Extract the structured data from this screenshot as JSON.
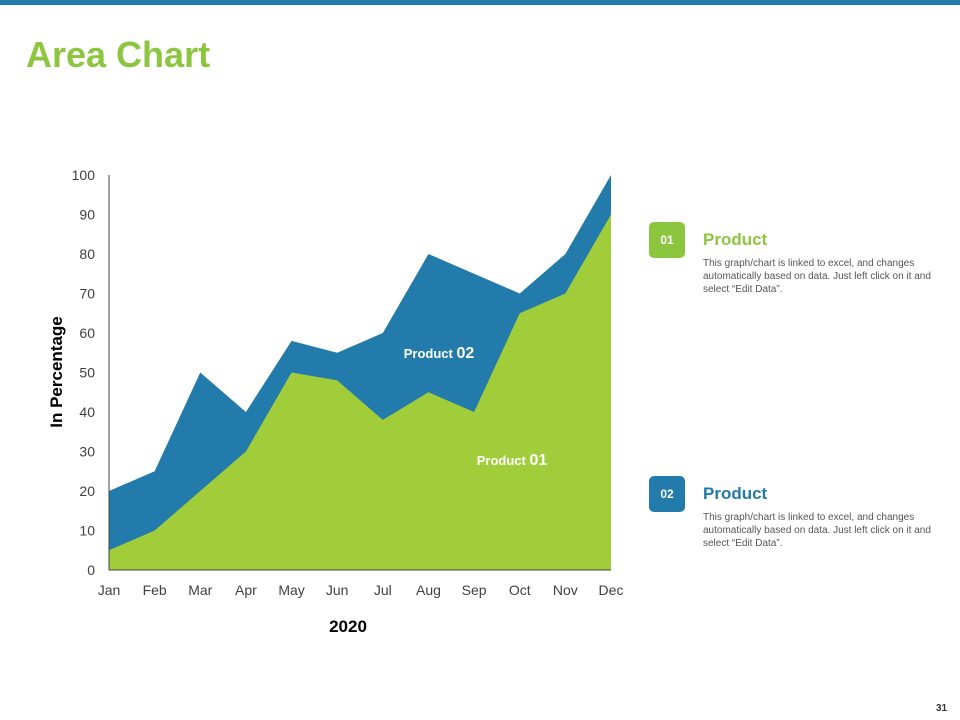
{
  "page": {
    "title": "Area Chart",
    "page_number": "31",
    "colors": {
      "accent_green": "#8cc63f",
      "series1": "#a2cd3a",
      "series2": "#227baa",
      "top_bar": "#227baa"
    }
  },
  "chart_data": {
    "type": "area",
    "title": "",
    "xlabel": "2020",
    "ylabel": "In Percentage",
    "categories": [
      "Jan",
      "Feb",
      "Mar",
      "Apr",
      "May",
      "Jun",
      "Jul",
      "Aug",
      "Sep",
      "Oct",
      "Nov",
      "Dec"
    ],
    "ylim": [
      0,
      100
    ],
    "yticks": [
      0,
      10,
      20,
      30,
      40,
      50,
      60,
      70,
      80,
      90,
      100
    ],
    "stacked": false,
    "series": [
      {
        "name": "Product 02",
        "label_prefix": "Product",
        "label_number": "02",
        "color": "#227baa",
        "values": [
          20,
          25,
          50,
          40,
          58,
          55,
          60,
          80,
          75,
          70,
          80,
          100
        ]
      },
      {
        "name": "Product 01",
        "label_prefix": "Product",
        "label_number": "01",
        "color": "#a2cd3a",
        "values": [
          5,
          10,
          20,
          30,
          50,
          48,
          38,
          45,
          40,
          65,
          70,
          90
        ]
      }
    ]
  },
  "legend": {
    "items": [
      {
        "badge": "01",
        "heading": "Product",
        "color": "#8cc63f",
        "description": "This graph/chart is linked to excel, and changes automatically based on data. Just left click on it and select “Edit Data”."
      },
      {
        "badge": "02",
        "heading": "Product",
        "color": "#227baa",
        "description": "This graph/chart is linked to excel, and changes automatically based on data. Just left click on it and select “Edit Data”."
      }
    ]
  }
}
